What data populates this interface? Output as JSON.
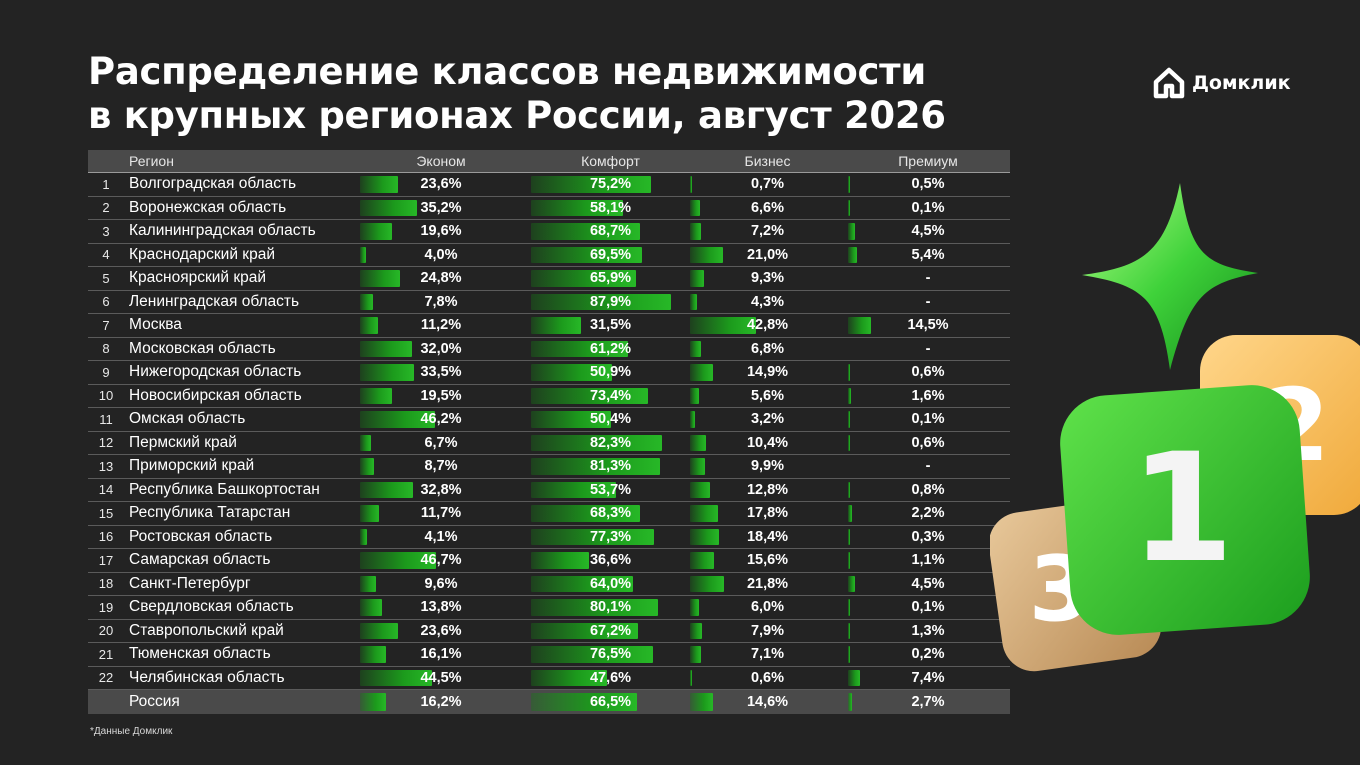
{
  "title": [
    "Распределение классов недвижимости",
    "в крупных регионах России, август 2026"
  ],
  "logo": {
    "text": "Домклик",
    "icon": "house-logo-icon"
  },
  "footnote": "*Данные Домклик",
  "colors": {
    "background": "#232323",
    "bar": "#1c9a1c",
    "header": "#4a4a4a"
  },
  "decoration": {
    "icons": [
      "star-icon",
      "rank-1-icon",
      "rank-2-icon",
      "rank-3-icon"
    ],
    "labels": [
      "1",
      "2",
      "3"
    ]
  },
  "chart_data": {
    "type": "table",
    "columns": [
      "",
      "Регион",
      "Эконом",
      "Комфорт",
      "Бизнес",
      "Премиум"
    ],
    "bar_max": 100,
    "rows": [
      {
        "n": "1",
        "region": "Волгоградская область",
        "ekonom": "23,6%",
        "komfort": "75,2%",
        "biznes": "0,7%",
        "premium": "0,5%",
        "values": [
          23.6,
          75.2,
          0.7,
          0.5
        ]
      },
      {
        "n": "2",
        "region": "Воронежская область",
        "ekonom": "35,2%",
        "komfort": "58,1%",
        "biznes": "6,6%",
        "premium": "0,1%",
        "values": [
          35.2,
          58.1,
          6.6,
          0.1
        ]
      },
      {
        "n": "3",
        "region": "Калининградская область",
        "ekonom": "19,6%",
        "komfort": "68,7%",
        "biznes": "7,2%",
        "premium": "4,5%",
        "values": [
          19.6,
          68.7,
          7.2,
          4.5
        ]
      },
      {
        "n": "4",
        "region": "Краснодарский край",
        "ekonom": "4,0%",
        "komfort": "69,5%",
        "biznes": "21,0%",
        "premium": "5,4%",
        "values": [
          4.0,
          69.5,
          21.0,
          5.4
        ]
      },
      {
        "n": "5",
        "region": "Красноярский край",
        "ekonom": "24,8%",
        "komfort": "65,9%",
        "biznes": "9,3%",
        "premium": "-",
        "values": [
          24.8,
          65.9,
          9.3,
          0
        ]
      },
      {
        "n": "6",
        "region": "Ленинградская область",
        "ekonom": "7,8%",
        "komfort": "87,9%",
        "biznes": "4,3%",
        "premium": "-",
        "values": [
          7.8,
          87.9,
          4.3,
          0
        ]
      },
      {
        "n": "7",
        "region": "Москва",
        "ekonom": "11,2%",
        "komfort": "31,5%",
        "biznes": "42,8%",
        "premium": "14,5%",
        "values": [
          11.2,
          31.5,
          42.8,
          14.5
        ]
      },
      {
        "n": "8",
        "region": "Московская область",
        "ekonom": "32,0%",
        "komfort": "61,2%",
        "biznes": "6,8%",
        "premium": "-",
        "values": [
          32.0,
          61.2,
          6.8,
          0
        ]
      },
      {
        "n": "9",
        "region": "Нижегородская область",
        "ekonom": "33,5%",
        "komfort": "50,9%",
        "biznes": "14,9%",
        "premium": "0,6%",
        "values": [
          33.5,
          50.9,
          14.9,
          0.6
        ]
      },
      {
        "n": "10",
        "region": "Новосибирская область",
        "ekonom": "19,5%",
        "komfort": "73,4%",
        "biznes": "5,6%",
        "premium": "1,6%",
        "values": [
          19.5,
          73.4,
          5.6,
          1.6
        ]
      },
      {
        "n": "11",
        "region": "Омская область",
        "ekonom": "46,2%",
        "komfort": "50,4%",
        "biznes": "3,2%",
        "premium": "0,1%",
        "values": [
          46.2,
          50.4,
          3.2,
          0.1
        ]
      },
      {
        "n": "12",
        "region": "Пермский край",
        "ekonom": "6,7%",
        "komfort": "82,3%",
        "biznes": "10,4%",
        "premium": "0,6%",
        "values": [
          6.7,
          82.3,
          10.4,
          0.6
        ]
      },
      {
        "n": "13",
        "region": "Приморский край",
        "ekonom": "8,7%",
        "komfort": "81,3%",
        "biznes": "9,9%",
        "premium": "-",
        "values": [
          8.7,
          81.3,
          9.9,
          0
        ]
      },
      {
        "n": "14",
        "region": "Республика Башкортостан",
        "ekonom": "32,8%",
        "komfort": "53,7%",
        "biznes": "12,8%",
        "premium": "0,8%",
        "values": [
          32.8,
          53.7,
          12.8,
          0.8
        ]
      },
      {
        "n": "15",
        "region": "Республика Татарстан",
        "ekonom": "11,7%",
        "komfort": "68,3%",
        "biznes": "17,8%",
        "premium": "2,2%",
        "values": [
          11.7,
          68.3,
          17.8,
          2.2
        ]
      },
      {
        "n": "16",
        "region": "Ростовская область",
        "ekonom": "4,1%",
        "komfort": "77,3%",
        "biznes": "18,4%",
        "premium": "0,3%",
        "values": [
          4.1,
          77.3,
          18.4,
          0.3
        ]
      },
      {
        "n": "17",
        "region": "Самарская область",
        "ekonom": "46,7%",
        "komfort": "36,6%",
        "biznes": "15,6%",
        "premium": "1,1%",
        "values": [
          46.7,
          36.6,
          15.6,
          1.1
        ]
      },
      {
        "n": "18",
        "region": "Санкт-Петербург",
        "ekonom": "9,6%",
        "komfort": "64,0%",
        "biznes": "21,8%",
        "premium": "4,5%",
        "values": [
          9.6,
          64.0,
          21.8,
          4.5
        ]
      },
      {
        "n": "19",
        "region": "Свердловская область",
        "ekonom": "13,8%",
        "komfort": "80,1%",
        "biznes": "6,0%",
        "premium": "0,1%",
        "values": [
          13.8,
          80.1,
          6.0,
          0.1
        ]
      },
      {
        "n": "20",
        "region": "Ставропольский край",
        "ekonom": "23,6%",
        "komfort": "67,2%",
        "biznes": "7,9%",
        "premium": "1,3%",
        "values": [
          23.6,
          67.2,
          7.9,
          1.3
        ]
      },
      {
        "n": "21",
        "region": "Тюменская область",
        "ekonom": "16,1%",
        "komfort": "76,5%",
        "biznes": "7,1%",
        "premium": "0,2%",
        "values": [
          16.1,
          76.5,
          7.1,
          0.2
        ]
      },
      {
        "n": "22",
        "region": "Челябинская область",
        "ekonom": "44,5%",
        "komfort": "47,6%",
        "biznes": "0,6%",
        "premium": "7,4%",
        "values": [
          44.5,
          47.6,
          0.6,
          7.4
        ]
      }
    ],
    "total": {
      "n": "",
      "region": "Россия",
      "ekonom": "16,2%",
      "komfort": "66,5%",
      "biznes": "14,6%",
      "premium": "2,7%",
      "values": [
        16.2,
        66.5,
        14.6,
        2.7
      ]
    }
  }
}
